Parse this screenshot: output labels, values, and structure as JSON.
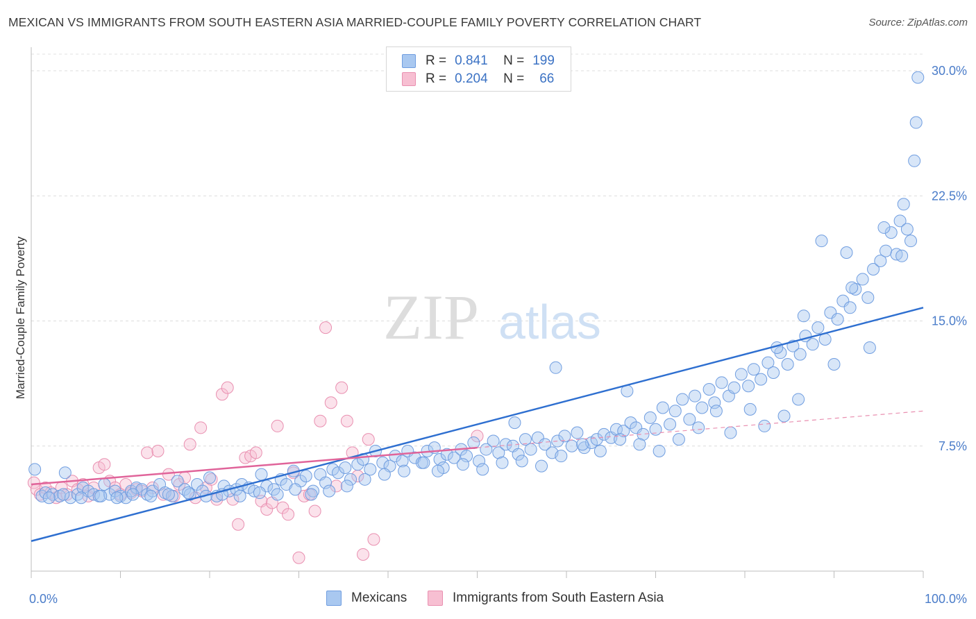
{
  "header": {
    "title": "MEXICAN VS IMMIGRANTS FROM SOUTH EASTERN ASIA MARRIED-COUPLE FAMILY POVERTY CORRELATION CHART",
    "source": "Source: ZipAtlas.com"
  },
  "watermark": {
    "zip": "ZIP",
    "atlas": "atlas"
  },
  "legend": {
    "rows": [
      {
        "r_label": "R =",
        "r_value": "0.841",
        "n_label": "N =",
        "n_value": "199",
        "color": "#a9c8f0",
        "border": "#6f9de0"
      },
      {
        "r_label": "R =",
        "r_value": "0.204",
        "n_label": "N =",
        "n_value": "66",
        "color": "#f7bfd2",
        "border": "#e98fb0"
      }
    ]
  },
  "bottom_legend": {
    "items": [
      {
        "label": "Mexicans",
        "color": "#a9c8f0",
        "border": "#6f9de0"
      },
      {
        "label": "Immigrants from South Eastern Asia",
        "color": "#f7bfd2",
        "border": "#e98fb0"
      }
    ]
  },
  "chart_data": {
    "type": "scatter",
    "title": "MEXICAN VS IMMIGRANTS FROM SOUTH EASTERN ASIA MARRIED-COUPLE FAMILY POVERTY CORRELATION CHART",
    "xlabel": "",
    "ylabel": "Married-Couple Family Poverty",
    "xlim": [
      0,
      100
    ],
    "ylim": [
      0,
      31
    ],
    "x_tick_labels": [
      "0.0%",
      "100.0%"
    ],
    "y_ticks": [
      7.5,
      15.0,
      22.5,
      30.0
    ],
    "y_tick_labels": [
      "7.5%",
      "15.0%",
      "22.5%",
      "30.0%"
    ],
    "grid": "horizontal dashed",
    "legend_position": "top-center",
    "series": [
      {
        "name": "Mexicans",
        "color": "#6f9de0",
        "fill": "#a9c8f0",
        "trend": {
          "x": [
            0,
            100
          ],
          "y": [
            1.8,
            15.8
          ]
        },
        "points": [
          [
            0.4,
            6.1
          ],
          [
            1.2,
            4.5
          ],
          [
            1.6,
            4.7
          ],
          [
            2.4,
            4.6
          ],
          [
            3.2,
            4.5
          ],
          [
            3.8,
            5.9
          ],
          [
            4.4,
            4.4
          ],
          [
            5.2,
            4.6
          ],
          [
            5.8,
            5.0
          ],
          [
            6.4,
            4.8
          ],
          [
            7.0,
            4.6
          ],
          [
            7.6,
            4.5
          ],
          [
            8.2,
            5.2
          ],
          [
            8.8,
            4.6
          ],
          [
            9.4,
            4.8
          ],
          [
            10.0,
            4.5
          ],
          [
            10.6,
            4.4
          ],
          [
            11.2,
            4.8
          ],
          [
            11.8,
            5.0
          ],
          [
            12.4,
            4.9
          ],
          [
            13.0,
            4.6
          ],
          [
            13.6,
            4.8
          ],
          [
            14.4,
            5.2
          ],
          [
            15.0,
            4.7
          ],
          [
            15.8,
            4.5
          ],
          [
            16.4,
            5.4
          ],
          [
            17.2,
            4.9
          ],
          [
            17.8,
            4.6
          ],
          [
            18.6,
            5.2
          ],
          [
            19.2,
            4.8
          ],
          [
            20.0,
            5.6
          ],
          [
            20.8,
            4.5
          ],
          [
            21.6,
            5.1
          ],
          [
            22.2,
            4.8
          ],
          [
            23.0,
            4.9
          ],
          [
            23.6,
            5.2
          ],
          [
            24.4,
            5.0
          ],
          [
            25.0,
            4.8
          ],
          [
            25.8,
            5.8
          ],
          [
            26.4,
            5.1
          ],
          [
            27.2,
            4.9
          ],
          [
            28.0,
            5.5
          ],
          [
            28.6,
            5.2
          ],
          [
            29.4,
            6.0
          ],
          [
            30.2,
            5.4
          ],
          [
            30.8,
            5.7
          ],
          [
            31.6,
            4.8
          ],
          [
            32.4,
            5.8
          ],
          [
            33.0,
            5.3
          ],
          [
            33.8,
            6.1
          ],
          [
            34.4,
            5.9
          ],
          [
            35.2,
            6.2
          ],
          [
            35.8,
            5.5
          ],
          [
            36.6,
            6.4
          ],
          [
            37.2,
            6.7
          ],
          [
            38.0,
            6.1
          ],
          [
            38.6,
            7.2
          ],
          [
            39.4,
            6.5
          ],
          [
            40.2,
            6.3
          ],
          [
            40.8,
            6.9
          ],
          [
            41.6,
            6.6
          ],
          [
            42.2,
            7.2
          ],
          [
            43.0,
            6.8
          ],
          [
            43.8,
            6.5
          ],
          [
            44.4,
            7.2
          ],
          [
            45.2,
            7.4
          ],
          [
            45.8,
            6.7
          ],
          [
            46.6,
            7.0
          ],
          [
            47.4,
            6.8
          ],
          [
            48.2,
            7.3
          ],
          [
            48.8,
            6.9
          ],
          [
            49.6,
            7.7
          ],
          [
            50.2,
            6.6
          ],
          [
            51.0,
            7.3
          ],
          [
            51.8,
            7.8
          ],
          [
            52.4,
            7.1
          ],
          [
            53.2,
            7.6
          ],
          [
            54.0,
            7.5
          ],
          [
            54.6,
            7.0
          ],
          [
            55.4,
            7.9
          ],
          [
            56.0,
            7.3
          ],
          [
            56.8,
            8.0
          ],
          [
            57.6,
            7.6
          ],
          [
            58.4,
            7.1
          ],
          [
            59.0,
            7.8
          ],
          [
            59.8,
            8.1
          ],
          [
            60.6,
            7.5
          ],
          [
            61.2,
            8.3
          ],
          [
            62.0,
            7.4
          ],
          [
            62.8,
            7.7
          ],
          [
            63.4,
            7.9
          ],
          [
            64.2,
            8.2
          ],
          [
            65.0,
            8.0
          ],
          [
            65.6,
            8.5
          ],
          [
            66.4,
            8.4
          ],
          [
            67.2,
            8.9
          ],
          [
            67.8,
            8.6
          ],
          [
            68.6,
            8.2
          ],
          [
            69.4,
            9.2
          ],
          [
            70.0,
            8.5
          ],
          [
            70.8,
            9.8
          ],
          [
            71.6,
            8.8
          ],
          [
            72.2,
            9.6
          ],
          [
            73.0,
            10.3
          ],
          [
            73.8,
            9.1
          ],
          [
            74.4,
            10.5
          ],
          [
            75.2,
            9.8
          ],
          [
            76.0,
            10.9
          ],
          [
            76.6,
            10.1
          ],
          [
            77.4,
            11.3
          ],
          [
            78.2,
            10.5
          ],
          [
            78.8,
            11.0
          ],
          [
            79.6,
            11.8
          ],
          [
            80.4,
            11.1
          ],
          [
            81.0,
            12.1
          ],
          [
            81.8,
            11.5
          ],
          [
            82.6,
            12.5
          ],
          [
            83.2,
            11.9
          ],
          [
            84.0,
            13.1
          ],
          [
            84.8,
            12.4
          ],
          [
            85.4,
            13.5
          ],
          [
            86.2,
            13.0
          ],
          [
            86.8,
            14.1
          ],
          [
            87.6,
            13.6
          ],
          [
            88.2,
            14.6
          ],
          [
            89.0,
            13.9
          ],
          [
            89.6,
            15.5
          ],
          [
            90.4,
            15.1
          ],
          [
            91.0,
            16.2
          ],
          [
            91.8,
            15.8
          ],
          [
            92.4,
            16.9
          ],
          [
            93.2,
            17.5
          ],
          [
            93.8,
            16.4
          ],
          [
            94.4,
            18.1
          ],
          [
            95.2,
            18.6
          ],
          [
            95.8,
            19.2
          ],
          [
            96.4,
            20.3
          ],
          [
            97.0,
            19.0
          ],
          [
            97.4,
            21.0
          ],
          [
            97.8,
            22.0
          ],
          [
            98.2,
            20.5
          ],
          [
            98.6,
            19.8
          ],
          [
            99.0,
            24.6
          ],
          [
            99.2,
            26.9
          ],
          [
            99.4,
            29.6
          ],
          [
            94.0,
            13.4
          ],
          [
            92.0,
            17.0
          ],
          [
            90.0,
            12.4
          ],
          [
            88.6,
            19.8
          ],
          [
            86.0,
            10.3
          ],
          [
            84.4,
            9.3
          ],
          [
            82.2,
            8.7
          ],
          [
            80.6,
            9.7
          ],
          [
            78.4,
            8.3
          ],
          [
            76.8,
            9.6
          ],
          [
            74.8,
            8.6
          ],
          [
            72.6,
            7.9
          ],
          [
            70.4,
            7.2
          ],
          [
            68.2,
            7.6
          ],
          [
            66.0,
            7.9
          ],
          [
            63.8,
            7.2
          ],
          [
            61.8,
            7.6
          ],
          [
            59.4,
            6.9
          ],
          [
            57.2,
            6.3
          ],
          [
            55.0,
            6.6
          ],
          [
            52.8,
            6.5
          ],
          [
            50.6,
            6.1
          ],
          [
            48.4,
            6.4
          ],
          [
            46.2,
            6.2
          ],
          [
            44.0,
            6.5
          ],
          [
            41.8,
            6.0
          ],
          [
            39.6,
            5.8
          ],
          [
            37.4,
            5.5
          ],
          [
            35.4,
            5.1
          ],
          [
            33.4,
            4.8
          ],
          [
            31.4,
            4.6
          ],
          [
            29.6,
            4.9
          ],
          [
            27.6,
            4.6
          ],
          [
            25.6,
            4.7
          ],
          [
            23.4,
            4.5
          ],
          [
            21.4,
            4.6
          ],
          [
            19.6,
            4.5
          ],
          [
            17.6,
            4.7
          ],
          [
            15.4,
            4.6
          ],
          [
            13.4,
            4.5
          ],
          [
            11.4,
            4.6
          ],
          [
            9.6,
            4.4
          ],
          [
            7.8,
            4.5
          ],
          [
            5.6,
            4.4
          ],
          [
            3.6,
            4.6
          ],
          [
            2.0,
            4.4
          ],
          [
            45.6,
            6.0
          ],
          [
            54.2,
            8.9
          ],
          [
            58.8,
            12.2
          ],
          [
            66.8,
            10.8
          ],
          [
            86.6,
            15.3
          ],
          [
            91.4,
            19.1
          ],
          [
            95.6,
            20.6
          ],
          [
            97.6,
            18.9
          ],
          [
            83.6,
            13.4
          ]
        ]
      },
      {
        "name": "Immigrants from South Eastern Asia",
        "color": "#e98fb0",
        "fill": "#f7bfd2",
        "trend": {
          "x": [
            0,
            50
          ],
          "y": [
            5.2,
            7.4
          ]
        },
        "trend_extension": {
          "x": [
            50,
            100
          ],
          "y": [
            7.4,
            9.6
          ]
        },
        "points": [
          [
            0.3,
            5.3
          ],
          [
            0.6,
            4.9
          ],
          [
            1.0,
            4.6
          ],
          [
            1.6,
            5.0
          ],
          [
            2.2,
            4.7
          ],
          [
            2.8,
            4.4
          ],
          [
            3.4,
            5.0
          ],
          [
            4.0,
            4.6
          ],
          [
            4.6,
            5.4
          ],
          [
            5.2,
            4.9
          ],
          [
            5.8,
            5.2
          ],
          [
            6.4,
            4.5
          ],
          [
            7.0,
            5.0
          ],
          [
            7.6,
            6.2
          ],
          [
            8.2,
            6.4
          ],
          [
            8.8,
            5.4
          ],
          [
            9.4,
            5.0
          ],
          [
            10.0,
            4.6
          ],
          [
            10.6,
            5.2
          ],
          [
            11.2,
            4.7
          ],
          [
            11.8,
            4.9
          ],
          [
            12.4,
            4.8
          ],
          [
            13.0,
            7.1
          ],
          [
            13.6,
            5.0
          ],
          [
            14.2,
            7.2
          ],
          [
            14.8,
            4.6
          ],
          [
            15.4,
            5.8
          ],
          [
            16.0,
            4.5
          ],
          [
            16.6,
            5.2
          ],
          [
            17.2,
            5.6
          ],
          [
            17.8,
            7.6
          ],
          [
            18.4,
            4.4
          ],
          [
            19.0,
            8.6
          ],
          [
            19.6,
            5.0
          ],
          [
            20.2,
            5.5
          ],
          [
            20.8,
            4.3
          ],
          [
            21.4,
            10.6
          ],
          [
            22.0,
            11.0
          ],
          [
            22.6,
            4.3
          ],
          [
            23.2,
            2.8
          ],
          [
            24.0,
            6.8
          ],
          [
            24.6,
            6.9
          ],
          [
            25.2,
            7.1
          ],
          [
            25.8,
            4.2
          ],
          [
            26.4,
            3.7
          ],
          [
            27.0,
            4.1
          ],
          [
            27.6,
            8.7
          ],
          [
            28.2,
            3.8
          ],
          [
            28.8,
            3.4
          ],
          [
            29.4,
            5.9
          ],
          [
            30.0,
            0.8
          ],
          [
            30.6,
            4.5
          ],
          [
            31.2,
            4.6
          ],
          [
            31.8,
            3.6
          ],
          [
            32.4,
            9.0
          ],
          [
            33.0,
            14.6
          ],
          [
            33.6,
            10.1
          ],
          [
            34.2,
            5.1
          ],
          [
            34.8,
            11.0
          ],
          [
            35.4,
            9.0
          ],
          [
            36.0,
            7.1
          ],
          [
            36.6,
            5.7
          ],
          [
            37.2,
            1.0
          ],
          [
            37.8,
            7.9
          ],
          [
            38.4,
            1.9
          ],
          [
            50.0,
            8.1
          ]
        ]
      }
    ]
  }
}
